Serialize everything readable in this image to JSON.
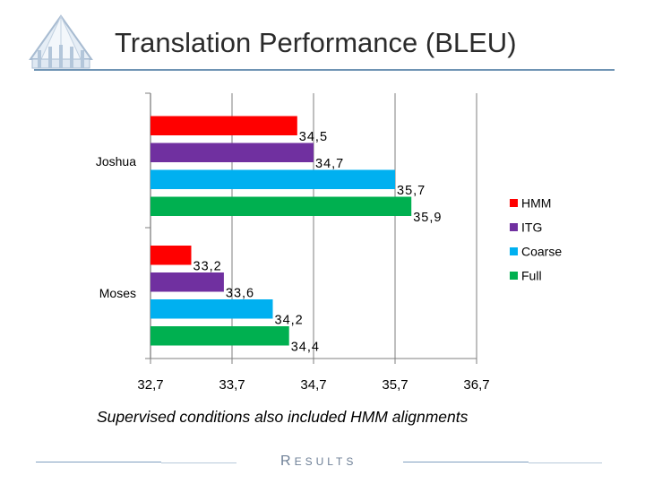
{
  "slide": {
    "title": "Translation Performance (BLEU)",
    "subtitle": "Supervised conditions also included HMM alignments",
    "footer_first": "R",
    "footer_rest": "ESULTS"
  },
  "colors": {
    "HMM": "#ff0000",
    "ITG": "#7030a0",
    "Coarse": "#00b0f0",
    "Full": "#00b050",
    "axis": "#7f7f7f"
  },
  "chart_data": {
    "type": "bar",
    "orientation": "horizontal",
    "title": "",
    "xlabel": "",
    "ylabel": "",
    "categories": [
      "Joshua",
      "Moses"
    ],
    "series": [
      {
        "name": "HMM",
        "values": [
          34.5,
          33.2
        ]
      },
      {
        "name": "ITG",
        "values": [
          34.7,
          33.6
        ]
      },
      {
        "name": "Coarse",
        "values": [
          35.7,
          34.2
        ]
      },
      {
        "name": "Full",
        "values": [
          35.9,
          34.4
        ]
      }
    ],
    "data_labels": {
      "Joshua": [
        "34,5",
        "34,7",
        "35,7",
        "35,9"
      ],
      "Moses": [
        "33,2",
        "33,6",
        "34,2",
        "34,4"
      ]
    },
    "xlim": [
      32.7,
      36.7
    ],
    "xticks": [
      32.7,
      33.7,
      34.7,
      35.7,
      36.7
    ],
    "xtick_labels": [
      "32,7",
      "33,7",
      "34,7",
      "35,7",
      "36,7"
    ],
    "grid": "vertical",
    "legend": "right"
  }
}
